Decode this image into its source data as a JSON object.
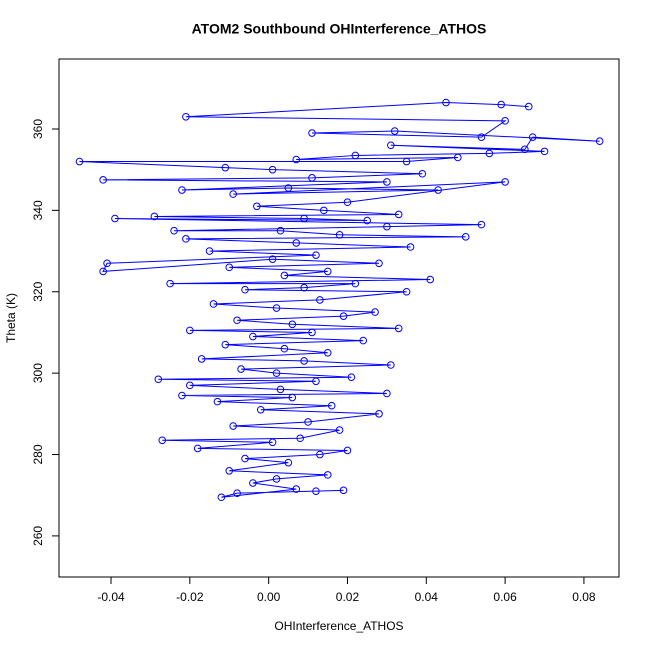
{
  "chart_data": {
    "type": "line",
    "title": "ATOM2 Southbound OHInterference_ATHOS",
    "xlabel": "OHInterference_ATHOS",
    "ylabel": "Theta (K)",
    "xlim": [
      -0.0532,
      0.0889
    ],
    "ylim": [
      249.9,
      377.2
    ],
    "xticks": [
      -0.04,
      -0.02,
      {
        "value": 0,
        "label": "0.00"
      },
      0.02,
      0.04,
      0.06,
      0.08
    ],
    "yticks": [
      260,
      280,
      300,
      320,
      340,
      360
    ],
    "series": [
      {
        "color": "#0000ff",
        "x": [
          0.012,
          0.019,
          -0.008,
          -0.012,
          0.007,
          -0.004,
          0.002,
          0.015,
          -0.01,
          0.005,
          -0.006,
          0.013,
          0.02,
          -0.018,
          0.001,
          -0.027,
          0.008,
          0.018,
          -0.009,
          0.01,
          0.028,
          -0.002,
          0.016,
          -0.013,
          0.006,
          -0.022,
          0.03,
          0.003,
          -0.02,
          0.012,
          -0.028,
          0.021,
          0.002,
          -0.007,
          0.031,
          0.009,
          -0.017,
          0.015,
          0.004,
          -0.011,
          0.024,
          -0.004,
          0.011,
          -0.02,
          0.033,
          0.006,
          -0.008,
          0.019,
          0.027,
          0.002,
          -0.014,
          0.013,
          0.035,
          -0.006,
          0.009,
          0.022,
          -0.025,
          0.041,
          0.004,
          0.015,
          -0.01,
          0.028,
          0.001,
          -0.042,
          -0.041,
          0.012,
          -0.015,
          0.036,
          0.007,
          -0.021,
          0.05,
          0.018,
          0.003,
          -0.024,
          0.03,
          0.054,
          -0.039,
          0.025,
          0.009,
          -0.029,
          0.033,
          0.014,
          -0.003,
          0.02,
          0.06,
          -0.009,
          0.043,
          0.005,
          -0.022,
          0.03,
          -0.042,
          0.011,
          0.039,
          0.001,
          -0.011,
          -0.048,
          0.035,
          0.048,
          0.007,
          0.022,
          0.056,
          0.07,
          0.031,
          0.065,
          0.067,
          0.084,
          0.032,
          0.011,
          0.054,
          0.06,
          -0.021,
          0.045,
          0.059,
          0.066
        ],
        "values": [
          271,
          271.2,
          270.5,
          269.5,
          271.5,
          273,
          274,
          275,
          276,
          278,
          279,
          280,
          281,
          281.5,
          283,
          283.5,
          284,
          286,
          287,
          288,
          290,
          291,
          292,
          293,
          294,
          294.5,
          295,
          296,
          297,
          298,
          298.5,
          299,
          300,
          301,
          302,
          303,
          303.5,
          305,
          306,
          307,
          308,
          309,
          310,
          310.5,
          311,
          312,
          313,
          314,
          315,
          316,
          317,
          318,
          320,
          320.5,
          321,
          322,
          322,
          323,
          324,
          325,
          326,
          327,
          328,
          325,
          327,
          329,
          330,
          331,
          332,
          333,
          333.5,
          334,
          335,
          335,
          336,
          336.5,
          338,
          337.5,
          338,
          338.5,
          339,
          340,
          341,
          342,
          347,
          344,
          345,
          345.5,
          345,
          347,
          347.5,
          348,
          349,
          350,
          350.5,
          352,
          352,
          353,
          352.5,
          353.5,
          354,
          354.5,
          356,
          355,
          358,
          357,
          359.5,
          359,
          358,
          362,
          363,
          366.5,
          366,
          365.5
        ]
      }
    ]
  }
}
